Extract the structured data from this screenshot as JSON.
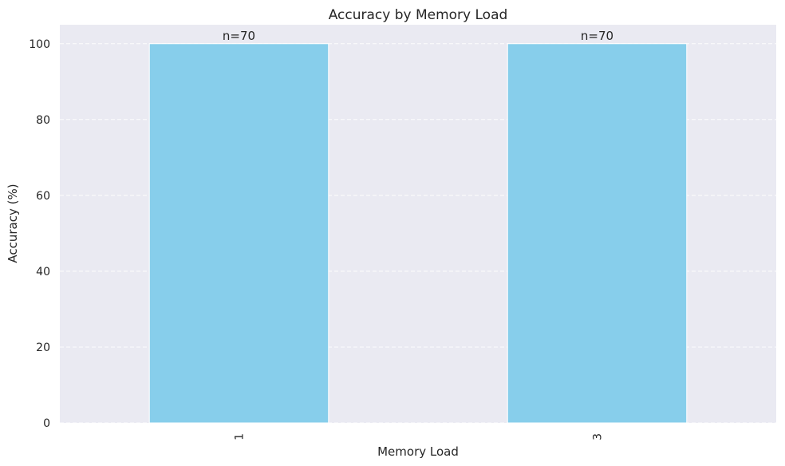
{
  "chart_data": {
    "type": "bar",
    "title": "Accuracy by Memory Load",
    "xlabel": "Memory Load",
    "ylabel": "Accuracy (%)",
    "categories": [
      "1",
      "3"
    ],
    "values": [
      100,
      100
    ],
    "bar_labels": [
      "n=70",
      "n=70"
    ],
    "ylim": [
      0,
      105
    ],
    "yticks": [
      0,
      20,
      40,
      60,
      80,
      100
    ],
    "grid": true,
    "grid_axis": "y",
    "grid_style": "dashed",
    "bar_color": "#87CEEB",
    "plot_background": "#EAEAF2",
    "xtick_rotation": 90
  }
}
